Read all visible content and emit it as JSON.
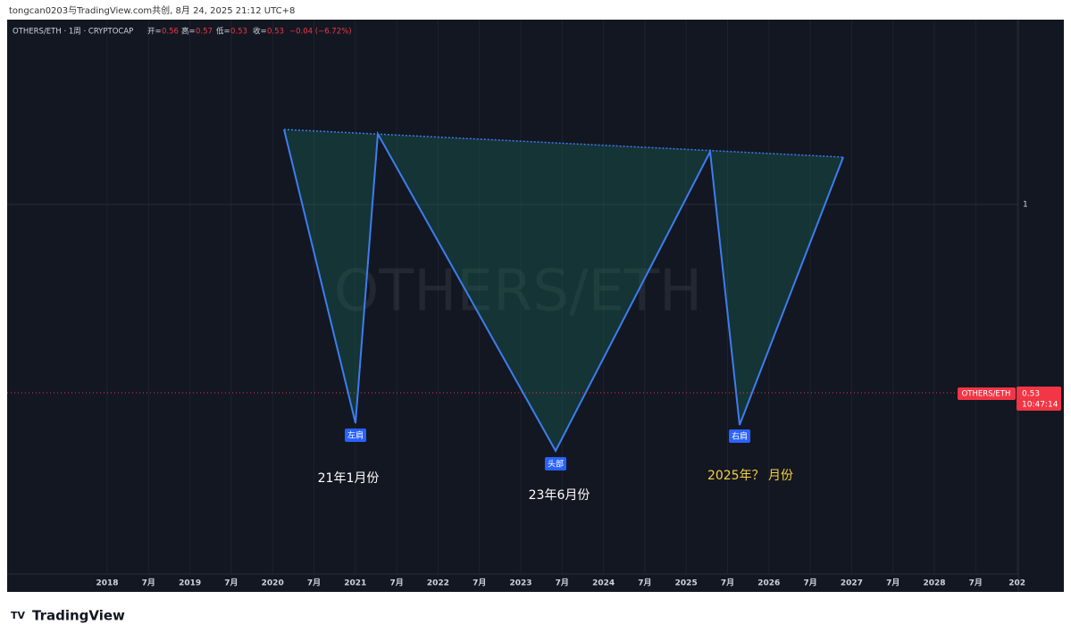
{
  "header": {
    "attribution": "tongcan0203与TradingView.com共创, 8月 24, 2025 21:12 UTC+8"
  },
  "legend": {
    "title": "OTHERS/ETH · 1周 · CRYPTOCAP",
    "open_label": "开=",
    "open": "0.56",
    "high_label": "高=",
    "high": "0.57",
    "low_label": "低=",
    "low": "0.53",
    "close_label": "收=",
    "close": "0.53",
    "change": "−0.04 (−6.72%)"
  },
  "watermark": "OTHERS/ETH",
  "price_axis": {
    "tick": "1",
    "symbol_tag": "OTHERS/ETH",
    "last_price": "0.53",
    "countdown": "10:47:14"
  },
  "time_axis": [
    "2018",
    "7月",
    "2019",
    "7月",
    "2020",
    "7月",
    "2021",
    "7月",
    "2022",
    "7月",
    "2023",
    "7月",
    "2024",
    "7月",
    "2025",
    "7月",
    "2026",
    "7月",
    "2027",
    "7月",
    "2028",
    "7月",
    "202"
  ],
  "pattern_labels": {
    "left_shoulder": "左肩",
    "head": "头部",
    "right_shoulder": "右肩"
  },
  "annotations": {
    "left": "21年1月份",
    "head": "23年6月份",
    "right": "2025年？ 月份"
  },
  "footer": {
    "brand": "TradingView"
  }
}
